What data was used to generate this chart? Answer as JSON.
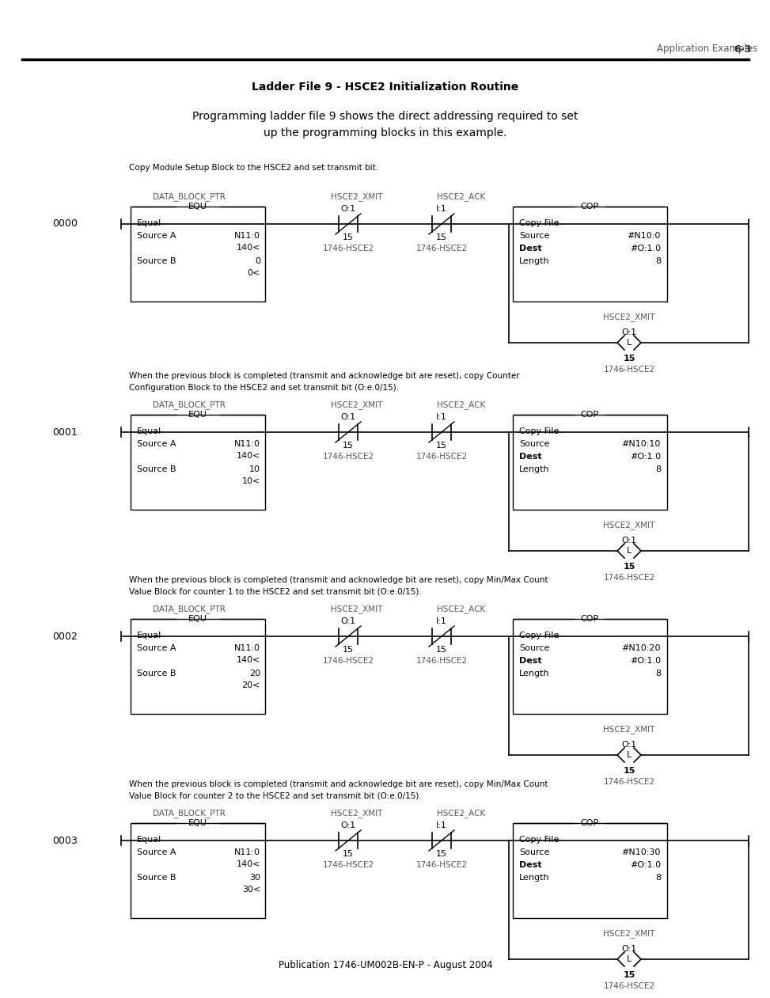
{
  "page_header_left": "Application Examples",
  "page_header_right": "6-3",
  "title": "Ladder File 9 - HSCE2 Initialization Routine",
  "intro_text_line1": "Programming ladder file 9 shows the direct addressing required to set",
  "intro_text_line2": "up the programming blocks in this example.",
  "footer": "Publication 1746-UM002B-EN-P - August 2004",
  "rungs": [
    {
      "rung_number": "0000",
      "comment_line1": "Copy Module Setup Block to the HSCE2 and set transmit bit.",
      "comment_line2": "",
      "equ_label": "DATA_BLOCK_PTR",
      "equ_line1": "Equal",
      "equ_line2a": "Source A",
      "equ_line2b": "N11:0",
      "equ_line3": "140<",
      "equ_line4a": "Source B",
      "equ_line4b": "0",
      "equ_line5": "0<",
      "nc1_label": "HSCE2_XMIT",
      "nc1_addr": "O:1",
      "nc1_bit": "15",
      "nc1_device": "1746-HSCE2",
      "nc2_label": "HSCE2_ACK",
      "nc2_addr": "I:1",
      "nc2_bit": "15",
      "nc2_device": "1746-HSCE2",
      "cop_src": "#N10:0",
      "cop_dest": "#O:1.0",
      "cop_len": "8",
      "out_label": "HSCE2_XMIT",
      "out_addr": "O:1",
      "out_bit": "15",
      "out_device": "1746-HSCE2"
    },
    {
      "rung_number": "0001",
      "comment_line1": "When the previous block is completed (transmit and acknowledge bit are reset), copy Counter",
      "comment_line2": "Configuration Block to the HSCE2 and set transmit bit (O:e.0/15).",
      "equ_label": "DATA_BLOCK_PTR",
      "equ_line1": "Equal",
      "equ_line2a": "Source A",
      "equ_line2b": "N11:0",
      "equ_line3": "140<",
      "equ_line4a": "Source B",
      "equ_line4b": "10",
      "equ_line5": "10<",
      "nc1_label": "HSCE2_XMIT",
      "nc1_addr": "O:1",
      "nc1_bit": "15",
      "nc1_device": "1746-HSCE2",
      "nc2_label": "HSCE2_ACK",
      "nc2_addr": "I:1",
      "nc2_bit": "15",
      "nc2_device": "1746-HSCE2",
      "cop_src": "#N10:10",
      "cop_dest": "#O:1.0",
      "cop_len": "8",
      "out_label": "HSCE2_XMIT",
      "out_addr": "O:1",
      "out_bit": "15",
      "out_device": "1746-HSCE2"
    },
    {
      "rung_number": "0002",
      "comment_line1": "When the previous block is completed (transmit and acknowledge bit are reset), copy Min/Max Count",
      "comment_line2": "Value Block for counter 1 to the HSCE2 and set transmit bit (O:e.0/15).",
      "equ_label": "DATA_BLOCK_PTR",
      "equ_line1": "Equal",
      "equ_line2a": "Source A",
      "equ_line2b": "N11:0",
      "equ_line3": "140<",
      "equ_line4a": "Source B",
      "equ_line4b": "20",
      "equ_line5": "20<",
      "nc1_label": "HSCE2_XMIT",
      "nc1_addr": "O:1",
      "nc1_bit": "15",
      "nc1_device": "1746-HSCE2",
      "nc2_label": "HSCE2_ACK",
      "nc2_addr": "I:1",
      "nc2_bit": "15",
      "nc2_device": "1746-HSCE2",
      "cop_src": "#N10:20",
      "cop_dest": "#O:1.0",
      "cop_len": "8",
      "out_label": "HSCE2_XMIT",
      "out_addr": "O:1",
      "out_bit": "15",
      "out_device": "1746-HSCE2"
    },
    {
      "rung_number": "0003",
      "comment_line1": "When the previous block is completed (transmit and acknowledge bit are reset), copy Min/Max Count",
      "comment_line2": "Value Block for counter 2 to the HSCE2 and set transmit bit (O:e.0/15).",
      "equ_label": "DATA_BLOCK_PTR",
      "equ_line1": "Equal",
      "equ_line2a": "Source A",
      "equ_line2b": "N11:0",
      "equ_line3": "140<",
      "equ_line4a": "Source B",
      "equ_line4b": "30",
      "equ_line5": "30<",
      "nc1_label": "HSCE2_XMIT",
      "nc1_addr": "O:1",
      "nc1_bit": "15",
      "nc1_device": "1746-HSCE2",
      "nc2_label": "HSCE2_ACK",
      "nc2_addr": "I:1",
      "nc2_bit": "15",
      "nc2_device": "1746-HSCE2",
      "cop_src": "#N10:30",
      "cop_dest": "#O:1.0",
      "cop_len": "8",
      "out_label": "HSCE2_XMIT",
      "out_addr": "O:1",
      "out_bit": "15",
      "out_device": "1746-HSCE2"
    }
  ]
}
